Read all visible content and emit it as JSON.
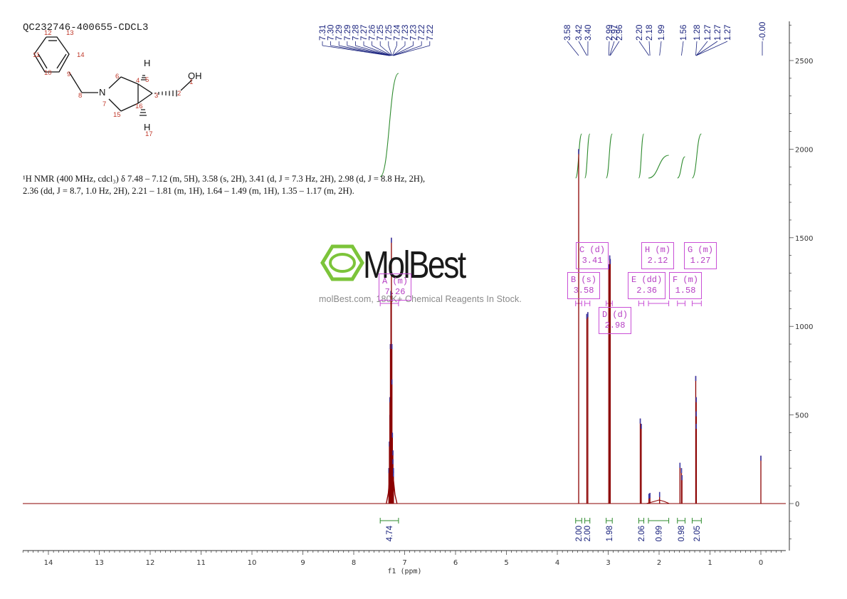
{
  "sample_id": "QC232746-400655-CDCL3",
  "nmr_text": "¹H NMR (400 MHz, cdcl₃) δ 7.48 – 7.12 (m, 5H), 3.58 (s, 2H), 3.41 (d, J = 7.3 Hz, 2H), 2.98 (d, J = 8.8 Hz, 2H), 2.36 (dd, J = 8.7, 1.0 Hz, 2H), 2.21 – 1.81 (m, 1H), 1.64 – 1.49 (m, 1H), 1.35 – 1.17 (m, 2H).",
  "watermark": {
    "brand": "MolBest",
    "tagline": "molBest.com, 180K+ Chemical Reagents In Stock."
  },
  "molecule": {
    "labels": [
      "OH",
      "H",
      "H",
      "N"
    ],
    "atom_numbers": [
      "1",
      "2",
      "3",
      "4",
      "5",
      "6",
      "7",
      "8",
      "9",
      "10",
      "11",
      "12",
      "13",
      "14",
      "15",
      "16",
      "17"
    ]
  },
  "colors": {
    "spectrum": "#8b0000",
    "integral": "#2e8b2e",
    "peak_label": "#1a237e",
    "multiplet": "#c94fd6",
    "axis": "#333333",
    "atom_number": "#c0392b"
  },
  "chart_data": {
    "type": "line",
    "xlabel": "f1 (ppm)",
    "ylabel": "",
    "xlim": [
      14.5,
      -0.5
    ],
    "ylim": [
      -500,
      5500
    ],
    "x_ticks": [
      14,
      13,
      12,
      11,
      10,
      9,
      8,
      7,
      6,
      5,
      4,
      3,
      2,
      1,
      0
    ],
    "y_ticks": [
      0,
      500,
      1000,
      1500,
      2000,
      2500,
      3000,
      3500,
      4000,
      4500,
      5000
    ],
    "peaks": [
      {
        "ppm": 7.31,
        "intensity": 200
      },
      {
        "ppm": 7.3,
        "intensity": 350
      },
      {
        "ppm": 7.29,
        "intensity": 500
      },
      {
        "ppm": 7.29,
        "intensity": 600
      },
      {
        "ppm": 7.28,
        "intensity": 900
      },
      {
        "ppm": 7.27,
        "intensity": 1200
      },
      {
        "ppm": 7.26,
        "intensity": 1500
      },
      {
        "ppm": 7.25,
        "intensity": 900
      },
      {
        "ppm": 7.25,
        "intensity": 700
      },
      {
        "ppm": 7.24,
        "intensity": 400
      },
      {
        "ppm": 7.23,
        "intensity": 300
      },
      {
        "ppm": 7.23,
        "intensity": 250
      },
      {
        "ppm": 7.22,
        "intensity": 200
      },
      {
        "ppm": 7.22,
        "intensity": 180
      },
      {
        "ppm": 3.58,
        "intensity": 2000
      },
      {
        "ppm": 3.42,
        "intensity": 1070
      },
      {
        "ppm": 3.4,
        "intensity": 1080
      },
      {
        "ppm": 2.99,
        "intensity": 1350
      },
      {
        "ppm": 2.97,
        "intensity": 1400
      },
      {
        "ppm": 2.96,
        "intensity": 1380
      },
      {
        "ppm": 2.2,
        "intensity": 55
      },
      {
        "ppm": 2.18,
        "intensity": 60
      },
      {
        "ppm": 1.99,
        "intensity": 65
      },
      {
        "ppm": 1.56,
        "intensity": 200
      },
      {
        "ppm": 1.28,
        "intensity": 720
      },
      {
        "ppm": 1.27,
        "intensity": 600
      },
      {
        "ppm": 1.27,
        "intensity": 520
      },
      {
        "ppm": 1.27,
        "intensity": 450
      },
      {
        "ppm": 0.0,
        "intensity": 270
      }
    ],
    "extra_lines": [
      {
        "ppm": 2.37,
        "intensity": 480
      },
      {
        "ppm": 2.35,
        "intensity": 450
      },
      {
        "ppm": 1.59,
        "intensity": 230
      },
      {
        "ppm": 1.55,
        "intensity": 160
      }
    ],
    "peak_labels_left": [
      "7.31",
      "7.30",
      "7.29",
      "7.29",
      "7.28",
      "7.27",
      "7.26",
      "7.25",
      "7.25",
      "7.24",
      "7.23",
      "7.23",
      "7.22",
      "7.22"
    ],
    "peak_labels_right": [
      "3.58",
      "3.42",
      "3.40",
      "2.99",
      "2.97",
      "2.96",
      "2.20",
      "2.18",
      "1.99",
      "1.56",
      "1.28",
      "1.27",
      "1.27",
      "1.27"
    ],
    "peak_labels_far": [
      "-0.00"
    ],
    "integrals": [
      {
        "from": 7.48,
        "to": 7.12,
        "value": "4.74"
      },
      {
        "from": 3.64,
        "to": 3.52,
        "value": "2.00"
      },
      {
        "from": 3.46,
        "to": 3.36,
        "value": "2.00"
      },
      {
        "from": 3.04,
        "to": 2.92,
        "value": "1.98"
      },
      {
        "from": 2.4,
        "to": 2.3,
        "value": "2.06"
      },
      {
        "from": 2.21,
        "to": 1.81,
        "value": "0.99"
      },
      {
        "from": 1.64,
        "to": 1.49,
        "value": "0.98"
      },
      {
        "from": 1.35,
        "to": 1.17,
        "value": "2.05"
      }
    ],
    "multiplets": [
      {
        "id": "A",
        "type": "m",
        "ppm": "7.26",
        "from": 7.48,
        "to": 7.12
      },
      {
        "id": "B",
        "type": "s",
        "ppm": "3.58",
        "from": 3.64,
        "to": 3.52
      },
      {
        "id": "C",
        "type": "d",
        "ppm": "3.41",
        "from": 3.46,
        "to": 3.36
      },
      {
        "id": "D",
        "type": "d",
        "ppm": "2.98",
        "from": 3.04,
        "to": 2.92
      },
      {
        "id": "E",
        "type": "dd",
        "ppm": "2.36",
        "from": 2.4,
        "to": 2.3
      },
      {
        "id": "H",
        "type": "m",
        "ppm": "2.12",
        "from": 2.21,
        "to": 1.81
      },
      {
        "id": "F",
        "type": "m",
        "ppm": "1.58",
        "from": 1.64,
        "to": 1.49
      },
      {
        "id": "G",
        "type": "m",
        "ppm": "1.27",
        "from": 1.35,
        "to": 1.17
      }
    ]
  }
}
